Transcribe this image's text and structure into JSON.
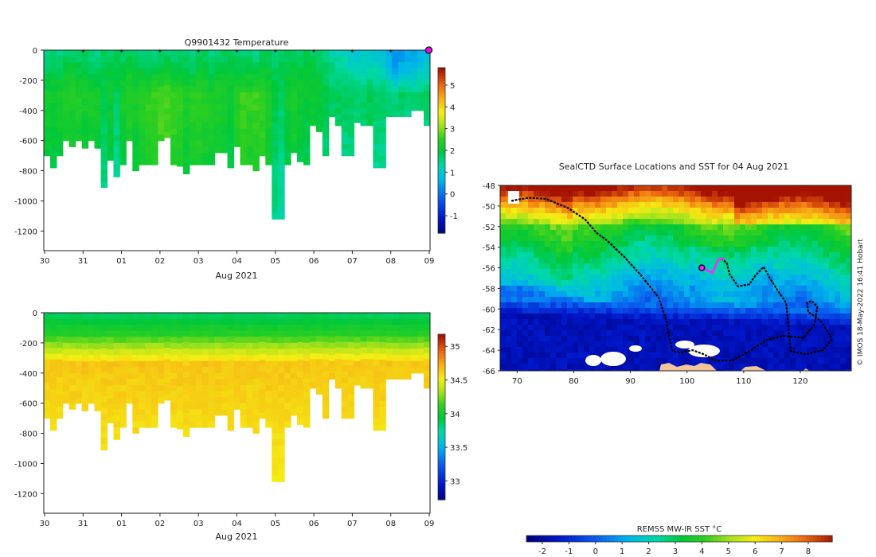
{
  "figure": {
    "credit": "© IMOS 18-May-2022 16:41 Hobart"
  },
  "profile_time_axis": {
    "ticks": [
      "30",
      "31",
      "01",
      "02",
      "03",
      "04",
      "05",
      "06",
      "07",
      "08",
      "09"
    ],
    "xlabel": "Aug 2021"
  },
  "chart_data": [
    {
      "type": "heatmap",
      "name": "temperature-section",
      "title": "Q9901432  Temperature",
      "xlabel": "Aug 2021",
      "ylabel": "",
      "x_ticks": [
        "30",
        "31",
        "01",
        "02",
        "03",
        "04",
        "05",
        "06",
        "07",
        "08",
        "09"
      ],
      "y_ticks": [
        0,
        -200,
        -400,
        -600,
        -800,
        -1000,
        -1200
      ],
      "ylim": [
        -1330,
        0
      ],
      "colorbar": {
        "ticks": [
          "5",
          "4",
          "3",
          "2",
          "1",
          "0",
          "-1"
        ],
        "range": [
          -1.8,
          5.8
        ]
      },
      "surface_markers": 10,
      "columns": [
        {
          "d": 700,
          "s": 1.6,
          "m": 2.3
        },
        {
          "d": 780,
          "s": 1.7,
          "m": 2.2
        },
        {
          "d": 700,
          "s": 1.6,
          "m": 2.3
        },
        {
          "d": 600,
          "s": 1.8,
          "m": 2.4
        },
        {
          "d": 640,
          "s": 1.8,
          "m": 2.4
        },
        {
          "d": 600,
          "s": 1.7,
          "m": 2.4
        },
        {
          "d": 650,
          "s": 1.8,
          "m": 2.3
        },
        {
          "d": 600,
          "s": 1.6,
          "m": 2.4
        },
        {
          "d": 650,
          "s": 1.6,
          "m": 2.3
        },
        {
          "d": 910,
          "s": 1.8,
          "m": 1.9
        },
        {
          "d": 730,
          "s": 1.7,
          "m": 2.2
        },
        {
          "d": 840,
          "s": 1.8,
          "m": 1.8
        },
        {
          "d": 760,
          "s": 1.7,
          "m": 2.3
        },
        {
          "d": 600,
          "s": 1.9,
          "m": 2.5
        },
        {
          "d": 800,
          "s": 1.8,
          "m": 2.3
        },
        {
          "d": 760,
          "s": 1.7,
          "m": 2.5
        },
        {
          "d": 760,
          "s": 1.6,
          "m": 2.6
        },
        {
          "d": 760,
          "s": 1.7,
          "m": 2.7
        },
        {
          "d": 600,
          "s": 1.8,
          "m": 2.8
        },
        {
          "d": 580,
          "s": 1.8,
          "m": 2.8
        },
        {
          "d": 760,
          "s": 1.7,
          "m": 2.7
        },
        {
          "d": 770,
          "s": 1.8,
          "m": 2.6
        },
        {
          "d": 820,
          "s": 1.7,
          "m": 2.4
        },
        {
          "d": 760,
          "s": 1.6,
          "m": 2.5
        },
        {
          "d": 760,
          "s": 1.8,
          "m": 2.6
        },
        {
          "d": 760,
          "s": 1.8,
          "m": 2.5
        },
        {
          "d": 760,
          "s": 1.6,
          "m": 2.4
        },
        {
          "d": 680,
          "s": 1.7,
          "m": 2.4
        },
        {
          "d": 680,
          "s": 1.8,
          "m": 2.3
        },
        {
          "d": 780,
          "s": 1.8,
          "m": 2.2
        },
        {
          "d": 640,
          "s": 1.8,
          "m": 2.5
        },
        {
          "d": 760,
          "s": 1.7,
          "m": 2.7
        },
        {
          "d": 760,
          "s": 1.7,
          "m": 2.6
        },
        {
          "d": 800,
          "s": 1.6,
          "m": 2.7
        },
        {
          "d": 700,
          "s": 1.8,
          "m": 2.7
        },
        {
          "d": 760,
          "s": 1.8,
          "m": 2.4
        },
        {
          "d": 1120,
          "s": 1.6,
          "m": 2.0
        },
        {
          "d": 1120,
          "s": 1.7,
          "m": 1.8
        },
        {
          "d": 760,
          "s": 1.8,
          "m": 2.2
        },
        {
          "d": 680,
          "s": 1.8,
          "m": 2.4
        },
        {
          "d": 740,
          "s": 1.7,
          "m": 2.2
        },
        {
          "d": 760,
          "s": 1.9,
          "m": 2.1
        },
        {
          "d": 500,
          "s": 1.8,
          "m": 2.2
        },
        {
          "d": 540,
          "s": 1.7,
          "m": 2.1
        },
        {
          "d": 700,
          "s": 1.6,
          "m": 1.9
        },
        {
          "d": 440,
          "s": 1.4,
          "m": 1.8
        },
        {
          "d": 500,
          "s": 1.3,
          "m": 1.9
        },
        {
          "d": 700,
          "s": 1.2,
          "m": 1.8
        },
        {
          "d": 700,
          "s": 1.1,
          "m": 1.8
        },
        {
          "d": 480,
          "s": 1.0,
          "m": 1.8
        },
        {
          "d": 500,
          "s": 1.0,
          "m": 1.8
        },
        {
          "d": 500,
          "s": 1.1,
          "m": 1.9
        },
        {
          "d": 780,
          "s": 1.0,
          "m": 1.8
        },
        {
          "d": 780,
          "s": 0.9,
          "m": 1.8
        },
        {
          "d": 440,
          "s": 0.6,
          "m": 1.8
        },
        {
          "d": 440,
          "s": 0.3,
          "m": 1.7
        },
        {
          "d": 440,
          "s": 0.4,
          "m": 1.8
        },
        {
          "d": 440,
          "s": 0.5,
          "m": 1.7
        },
        {
          "d": 400,
          "s": 0.6,
          "m": 1.7
        },
        {
          "d": 400,
          "s": 0.7,
          "m": 1.8
        },
        {
          "d": 500,
          "s": 0.8,
          "m": 1.8
        }
      ]
    },
    {
      "type": "heatmap",
      "name": "salinity-section",
      "title": "",
      "xlabel": "Aug 2021",
      "ylabel": "",
      "x_ticks": [
        "30",
        "31",
        "01",
        "02",
        "03",
        "04",
        "05",
        "06",
        "07",
        "08",
        "09"
      ],
      "y_ticks": [
        0,
        -200,
        -400,
        -600,
        -800,
        -1000,
        -1200
      ],
      "ylim": [
        -1330,
        0
      ],
      "colorbar": {
        "ticks": [
          "35",
          "34.5",
          "34",
          "33.5",
          "33"
        ],
        "range": [
          32.72,
          35.18
        ]
      },
      "surface_value": 33.9,
      "deep_value": 34.7
    },
    {
      "type": "heatmap",
      "name": "sst-map",
      "title": "SealCTD Surface Locations and SST for 04 Aug 2021",
      "xlabel": "",
      "ylabel": "",
      "xlim": [
        67,
        129
      ],
      "ylim": [
        -66,
        -48
      ],
      "x_ticks": [
        "70",
        "80",
        "90",
        "100",
        "110",
        "120"
      ],
      "y_ticks": [
        "-48",
        "-50",
        "-52",
        "-54",
        "-56",
        "-58",
        "-60",
        "-62",
        "-64",
        "-66"
      ],
      "colorbar": {
        "label": "REMSS MW-IR SST °C",
        "ticks": [
          "-2",
          "-1",
          "0",
          "1",
          "2",
          "3",
          "4",
          "5",
          "6",
          "7",
          "8"
        ],
        "range": [
          -2.6,
          8.9
        ]
      },
      "track": [
        [
          69,
          -49.5
        ],
        [
          72,
          -49.2
        ],
        [
          75,
          -49.3
        ],
        [
          79,
          -50.2
        ],
        [
          82,
          -51.3
        ],
        [
          84,
          -52.6
        ],
        [
          86,
          -53.4
        ],
        [
          89,
          -55
        ],
        [
          92,
          -56.8
        ],
        [
          95,
          -58.9
        ],
        [
          96.3,
          -61
        ],
        [
          97,
          -63.2
        ],
        [
          97.5,
          -64.1
        ],
        [
          99,
          -64.2
        ],
        [
          101,
          -64
        ],
        [
          103,
          -64.4
        ],
        [
          105,
          -65
        ],
        [
          108,
          -65
        ],
        [
          111,
          -64.1
        ],
        [
          114,
          -63
        ],
        [
          117,
          -62.6
        ],
        [
          120.5,
          -62.8
        ],
        [
          122.5,
          -61.5
        ],
        [
          123,
          -59.8
        ],
        [
          122,
          -59.2
        ],
        [
          121.2,
          -59.4
        ],
        [
          121.4,
          -60.3
        ],
        [
          122.6,
          -60.7
        ],
        [
          123.8,
          -61.3
        ],
        [
          125.6,
          -62.9
        ],
        [
          124,
          -64
        ],
        [
          121,
          -64.4
        ],
        [
          118.3,
          -64.1
        ],
        [
          118,
          -62.4
        ],
        [
          117.5,
          -59.4
        ],
        [
          116,
          -58.2
        ],
        [
          114.5,
          -56.9
        ],
        [
          113.5,
          -55.9
        ],
        [
          112,
          -56.8
        ],
        [
          111,
          -57.6
        ],
        [
          109,
          -57.8
        ],
        [
          107.5,
          -56.6
        ],
        [
          107,
          -55.5
        ],
        [
          106,
          -55.1
        ]
      ],
      "recent_track": [
        [
          103,
          -56.1
        ],
        [
          104.5,
          -56.5
        ],
        [
          105.5,
          -55.2
        ],
        [
          106.6,
          -55.1
        ]
      ],
      "last_position": [
        102.6,
        -56
      ]
    }
  ],
  "colors": {
    "marker": "#ff00ff",
    "recent_track": "#ff22ff",
    "track": "#000000",
    "land": "#f2c49b",
    "ice": "#ffffff"
  }
}
